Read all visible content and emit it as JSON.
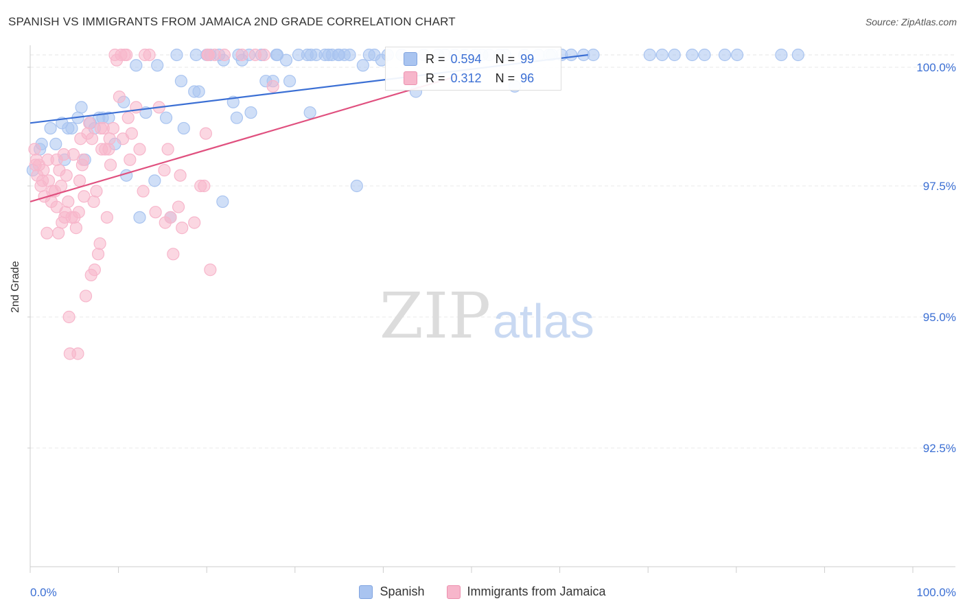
{
  "header": {
    "title": "SPANISH VS IMMIGRANTS FROM JAMAICA 2ND GRADE CORRELATION CHART",
    "source": "Source: ZipAtlas.com"
  },
  "watermark": {
    "zip": "ZIP",
    "atlas": "atlas"
  },
  "legend_box": {
    "rows": [
      {
        "r_label": "R =",
        "r_value": "0.594",
        "n_label": "N =",
        "n_value": "99",
        "color": "#a9c4f0"
      },
      {
        "r_label": "R =",
        "r_value": "0.312",
        "n_label": "N =",
        "n_value": "96",
        "color": "#f7b6cb"
      }
    ]
  },
  "bottom_legend": {
    "items": [
      {
        "label": "Spanish",
        "color": "#a9c4f0"
      },
      {
        "label": "Immigrants from Jamaica",
        "color": "#f7b6cb"
      }
    ]
  },
  "chart_data": {
    "type": "scatter",
    "title": "SPANISH VS IMMIGRANTS FROM JAMAICA 2ND GRADE CORRELATION CHART",
    "xlabel": "",
    "ylabel": "2nd Grade",
    "xlim": [
      0,
      100
    ],
    "ylim": [
      90.2,
      100.25
    ],
    "x_tick_labels": [
      "0.0%",
      "100.0%"
    ],
    "y_ticks": [
      {
        "value": 100.0,
        "label": "100.0%"
      },
      {
        "value": 97.5,
        "label": "97.5%"
      },
      {
        "value": 95.0,
        "label": "95.0%"
      },
      {
        "value": 92.5,
        "label": "92.5%"
      }
    ],
    "grid": true,
    "series": [
      {
        "name": "Spanish",
        "color": "#3b6fd4",
        "fill": "#a9c4f0",
        "R": 0.594,
        "N": 99,
        "trend": {
          "x": [
            0,
            63.2
          ],
          "y": [
            98.7,
            100.0
          ]
        },
        "points": [
          [
            0.3,
            97.8
          ],
          [
            1.3,
            98.3
          ],
          [
            2.3,
            98.6
          ],
          [
            1.1,
            98.2
          ],
          [
            2.9,
            98.3
          ],
          [
            3.6,
            98.7
          ],
          [
            4.3,
            98.6
          ],
          [
            3.9,
            98.0
          ],
          [
            4.7,
            98.6
          ],
          [
            5.4,
            98.8
          ],
          [
            5.8,
            99.0
          ],
          [
            6.2,
            98.0
          ],
          [
            6.8,
            98.7
          ],
          [
            7.3,
            98.6
          ],
          [
            7.8,
            98.8
          ],
          [
            8.2,
            98.8
          ],
          [
            8.9,
            98.8
          ],
          [
            9.6,
            98.3
          ],
          [
            10.6,
            99.1
          ],
          [
            10.9,
            97.7
          ],
          [
            12.0,
            99.8
          ],
          [
            12.4,
            96.9
          ],
          [
            13.1,
            98.9
          ],
          [
            14.4,
            99.8
          ],
          [
            14.1,
            97.6
          ],
          [
            15.4,
            98.8
          ],
          [
            15.9,
            96.9
          ],
          [
            16.6,
            100.0
          ],
          [
            17.1,
            99.5
          ],
          [
            17.4,
            98.6
          ],
          [
            18.6,
            99.3
          ],
          [
            18.8,
            100.0
          ],
          [
            19.1,
            99.3
          ],
          [
            20.0,
            100.0
          ],
          [
            20.4,
            100.0
          ],
          [
            21.4,
            100.0
          ],
          [
            21.9,
            99.9
          ],
          [
            21.8,
            97.2
          ],
          [
            23.0,
            99.1
          ],
          [
            23.4,
            98.8
          ],
          [
            23.6,
            100.0
          ],
          [
            24.0,
            99.9
          ],
          [
            24.8,
            100.0
          ],
          [
            25.0,
            98.9
          ],
          [
            26.2,
            100.0
          ],
          [
            26.7,
            99.5
          ],
          [
            27.5,
            99.5
          ],
          [
            27.9,
            100.0
          ],
          [
            28.0,
            100.0
          ],
          [
            29.0,
            99.9
          ],
          [
            29.4,
            99.5
          ],
          [
            30.4,
            100.0
          ],
          [
            31.4,
            100.0
          ],
          [
            31.8,
            100.0
          ],
          [
            31.7,
            98.9
          ],
          [
            32.4,
            100.0
          ],
          [
            33.4,
            100.0
          ],
          [
            33.8,
            100.0
          ],
          [
            34.2,
            100.0
          ],
          [
            34.9,
            100.0
          ],
          [
            35.0,
            100.0
          ],
          [
            35.6,
            100.0
          ],
          [
            36.2,
            100.0
          ],
          [
            37.0,
            97.5
          ],
          [
            37.7,
            99.8
          ],
          [
            38.4,
            100.0
          ],
          [
            39.0,
            100.0
          ],
          [
            39.8,
            99.9
          ],
          [
            40.5,
            100.0
          ],
          [
            42.1,
            100.0
          ],
          [
            43.7,
            99.3
          ],
          [
            44.6,
            100.0
          ],
          [
            46.2,
            100.0
          ],
          [
            47.0,
            100.0
          ],
          [
            48.1,
            100.0
          ],
          [
            49.2,
            100.0
          ],
          [
            50.4,
            100.0
          ],
          [
            51.2,
            100.0
          ],
          [
            52.0,
            100.0
          ],
          [
            53.2,
            100.0
          ],
          [
            53.8,
            100.0
          ],
          [
            54.9,
            99.4
          ],
          [
            56.0,
            100.0
          ],
          [
            57.6,
            100.0
          ],
          [
            58.8,
            100.0
          ],
          [
            59.1,
            100.0
          ],
          [
            60.2,
            100.0
          ],
          [
            61.3,
            100.0
          ],
          [
            62.7,
            100.0
          ],
          [
            63.8,
            100.0
          ],
          [
            70.2,
            100.0
          ],
          [
            71.6,
            100.0
          ],
          [
            73.0,
            100.0
          ],
          [
            75.0,
            100.0
          ],
          [
            76.4,
            100.0
          ],
          [
            78.7,
            100.0
          ],
          [
            80.1,
            100.0
          ],
          [
            85.1,
            100.0
          ],
          [
            87.0,
            100.0
          ]
        ]
      },
      {
        "name": "Immigrants from Jamaica",
        "color": "#e0507f",
        "fill": "#f7b6cb",
        "R": 0.312,
        "N": 96,
        "trend": {
          "x": [
            0,
            48.5
          ],
          "y": [
            97.2,
            99.6
          ]
        },
        "points": [
          [
            0.5,
            98.2
          ],
          [
            0.6,
            97.9
          ],
          [
            0.7,
            98.0
          ],
          [
            0.8,
            97.7
          ],
          [
            1.0,
            97.9
          ],
          [
            1.2,
            97.5
          ],
          [
            1.4,
            97.6
          ],
          [
            1.6,
            97.3
          ],
          [
            1.9,
            96.6
          ],
          [
            2.1,
            97.6
          ],
          [
            2.4,
            97.2
          ],
          [
            2.5,
            97.4
          ],
          [
            2.8,
            97.4
          ],
          [
            3.0,
            98.0
          ],
          [
            3.2,
            96.6
          ],
          [
            3.3,
            97.8
          ],
          [
            3.5,
            97.5
          ],
          [
            3.6,
            96.8
          ],
          [
            3.8,
            98.1
          ],
          [
            3.9,
            96.9
          ],
          [
            4.1,
            97.7
          ],
          [
            4.3,
            97.2
          ],
          [
            4.4,
            95.0
          ],
          [
            4.5,
            94.3
          ],
          [
            4.7,
            96.9
          ],
          [
            4.9,
            98.1
          ],
          [
            5.0,
            96.9
          ],
          [
            5.2,
            96.7
          ],
          [
            5.4,
            94.3
          ],
          [
            5.6,
            97.6
          ],
          [
            5.7,
            98.4
          ],
          [
            5.9,
            97.9
          ],
          [
            6.1,
            97.3
          ],
          [
            6.3,
            95.4
          ],
          [
            6.5,
            98.5
          ],
          [
            6.7,
            98.7
          ],
          [
            6.9,
            95.8
          ],
          [
            7.0,
            98.4
          ],
          [
            7.2,
            97.2
          ],
          [
            7.3,
            95.9
          ],
          [
            7.5,
            97.4
          ],
          [
            7.7,
            96.2
          ],
          [
            7.9,
            96.4
          ],
          [
            8.1,
            98.2
          ],
          [
            8.3,
            98.6
          ],
          [
            8.5,
            98.2
          ],
          [
            8.7,
            96.9
          ],
          [
            8.9,
            98.2
          ],
          [
            9.1,
            97.9
          ],
          [
            9.4,
            98.6
          ],
          [
            9.6,
            100.0
          ],
          [
            9.8,
            99.9
          ],
          [
            10.1,
            99.2
          ],
          [
            10.3,
            100.0
          ],
          [
            10.5,
            98.4
          ],
          [
            10.7,
            100.0
          ],
          [
            10.9,
            100.0
          ],
          [
            11.1,
            98.8
          ],
          [
            11.3,
            98.0
          ],
          [
            12.4,
            98.2
          ],
          [
            12.8,
            97.4
          ],
          [
            13.5,
            100.0
          ],
          [
            14.2,
            97.0
          ],
          [
            14.6,
            99.0
          ],
          [
            15.2,
            97.8
          ],
          [
            15.3,
            96.8
          ],
          [
            15.6,
            98.2
          ],
          [
            15.9,
            96.9
          ],
          [
            16.2,
            96.2
          ],
          [
            16.8,
            97.1
          ],
          [
            17.0,
            97.7
          ],
          [
            17.2,
            96.7
          ],
          [
            18.6,
            96.8
          ],
          [
            19.3,
            97.5
          ],
          [
            19.7,
            97.5
          ],
          [
            19.9,
            98.5
          ],
          [
            20.1,
            100.0
          ],
          [
            20.4,
            95.9
          ],
          [
            20.9,
            100.0
          ],
          [
            20.2,
            100.0
          ],
          [
            25.5,
            100.0
          ],
          [
            27.5,
            99.4
          ],
          [
            5.5,
            97.0
          ],
          [
            6.0,
            98.0
          ],
          [
            2.0,
            98.0
          ],
          [
            1.5,
            97.8
          ],
          [
            3.0,
            97.1
          ],
          [
            4.0,
            97.0
          ],
          [
            8.0,
            98.6
          ],
          [
            9.0,
            98.4
          ],
          [
            11.5,
            98.5
          ],
          [
            12.0,
            99.0
          ],
          [
            13.0,
            100.0
          ],
          [
            22.0,
            100.0
          ],
          [
            24.0,
            100.0
          ],
          [
            26.5,
            100.0
          ]
        ]
      }
    ]
  }
}
